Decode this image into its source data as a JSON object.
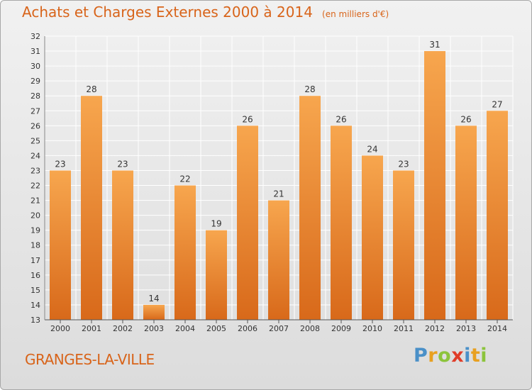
{
  "title": "Achats et Charges Externes 2000 à 2014",
  "unit": "(en milliers d'€)",
  "commune": "GRANGES-LA-VILLE",
  "logo": {
    "text": "Proxiti",
    "letters": [
      {
        "ch": "P",
        "color": "#4a90c8"
      },
      {
        "ch": "r",
        "color": "#e8a020"
      },
      {
        "ch": "o",
        "color": "#8cc43c"
      },
      {
        "ch": "x",
        "color": "#e03c28"
      },
      {
        "ch": "i",
        "color": "#4a90c8"
      },
      {
        "ch": "t",
        "color": "#e8a020"
      },
      {
        "ch": "i",
        "color": "#8cc43c"
      }
    ]
  },
  "colors": {
    "bar_light": "#f7a64e",
    "bar_dark": "#d8691a",
    "grid": "#ffffff",
    "text": "#333333"
  },
  "chart_data": {
    "type": "bar",
    "categories": [
      "2000",
      "2001",
      "2002",
      "2003",
      "2004",
      "2005",
      "2006",
      "2007",
      "2008",
      "2009",
      "2010",
      "2011",
      "2012",
      "2013",
      "2014"
    ],
    "values": [
      23,
      28,
      23,
      14,
      22,
      19,
      26,
      21,
      28,
      26,
      24,
      23,
      31,
      26,
      27
    ],
    "ylim": [
      13,
      32
    ],
    "yticks": [
      13,
      14,
      15,
      16,
      17,
      18,
      19,
      20,
      21,
      22,
      23,
      24,
      25,
      26,
      27,
      28,
      29,
      30,
      31,
      32
    ],
    "grid": true,
    "data_labels": true
  }
}
